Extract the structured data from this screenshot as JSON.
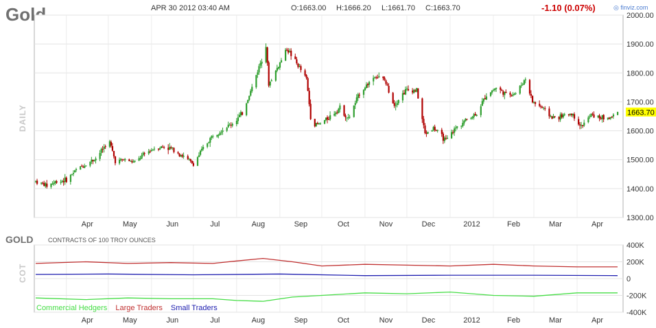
{
  "header": {
    "ticker": "Gold",
    "date": "APR 30 2012 03:40 AM",
    "open": "O:1663.00",
    "high": "H:1666.20",
    "low": "L:1661.70",
    "close": "C:1663.70",
    "change": "-1.10 (0.07%)",
    "brand": "finviz.com"
  },
  "colors": {
    "up": "#2e9e2e",
    "down": "#b00000",
    "commercial": "#44dd44",
    "large": "#c03030",
    "small": "#2020b0",
    "last_bg": "#ffff00"
  },
  "chart_data": [
    {
      "type": "candlestick",
      "side_label": "DAILY",
      "last_price": "1663.70",
      "ylim": [
        1300,
        2000
      ],
      "yticks": [
        "2000.00",
        "1900.00",
        "1800.00",
        "1700.00",
        "1600.00",
        "1500.00",
        "1400.00",
        "1300.00"
      ],
      "xticks": [
        "Apr",
        "May",
        "Jun",
        "Jul",
        "Aug",
        "Sep",
        "Oct",
        "Nov",
        "Dec",
        "2012",
        "Feb",
        "Mar",
        "Apr"
      ],
      "x_range": [
        "2011-03-10",
        "2012-04-30"
      ],
      "close_path": [
        [
          "2011-03-10",
          1425
        ],
        [
          "2011-03-18",
          1410
        ],
        [
          "2011-03-25",
          1425
        ],
        [
          "2011-04-01",
          1430
        ],
        [
          "2011-04-08",
          1465
        ],
        [
          "2011-04-15",
          1485
        ],
        [
          "2011-04-22",
          1505
        ],
        [
          "2011-04-29",
          1550
        ],
        [
          "2011-05-02",
          1560
        ],
        [
          "2011-05-06",
          1495
        ],
        [
          "2011-05-13",
          1500
        ],
        [
          "2011-05-20",
          1490
        ],
        [
          "2011-05-27",
          1520
        ],
        [
          "2011-06-03",
          1540
        ],
        [
          "2011-06-10",
          1545
        ],
        [
          "2011-06-17",
          1535
        ],
        [
          "2011-06-24",
          1510
        ],
        [
          "2011-07-01",
          1485
        ],
        [
          "2011-07-08",
          1540
        ],
        [
          "2011-07-15",
          1585
        ],
        [
          "2011-07-22",
          1605
        ],
        [
          "2011-07-29",
          1625
        ],
        [
          "2011-08-05",
          1660
        ],
        [
          "2011-08-12",
          1750
        ],
        [
          "2011-08-19",
          1850
        ],
        [
          "2011-08-22",
          1895
        ],
        [
          "2011-08-24",
          1760
        ],
        [
          "2011-08-31",
          1825
        ],
        [
          "2011-09-06",
          1885
        ],
        [
          "2011-09-12",
          1840
        ],
        [
          "2011-09-20",
          1780
        ],
        [
          "2011-09-23",
          1650
        ],
        [
          "2011-09-26",
          1620
        ],
        [
          "2011-09-30",
          1625
        ],
        [
          "2011-10-07",
          1650
        ],
        [
          "2011-10-14",
          1680
        ],
        [
          "2011-10-20",
          1640
        ],
        [
          "2011-10-28",
          1730
        ],
        [
          "2011-11-08",
          1790
        ],
        [
          "2011-11-15",
          1775
        ],
        [
          "2011-11-22",
          1690
        ],
        [
          "2011-11-30",
          1740
        ],
        [
          "2011-12-08",
          1740
        ],
        [
          "2011-12-14",
          1590
        ],
        [
          "2011-12-20",
          1610
        ],
        [
          "2011-12-29",
          1565
        ],
        [
          "2012-01-05",
          1610
        ],
        [
          "2012-01-13",
          1640
        ],
        [
          "2012-01-20",
          1660
        ],
        [
          "2012-01-27",
          1725
        ],
        [
          "2012-02-03",
          1750
        ],
        [
          "2012-02-10",
          1725
        ],
        [
          "2012-02-17",
          1730
        ],
        [
          "2012-02-24",
          1780
        ],
        [
          "2012-02-29",
          1700
        ],
        [
          "2012-03-07",
          1680
        ],
        [
          "2012-03-14",
          1645
        ],
        [
          "2012-03-21",
          1650
        ],
        [
          "2012-03-28",
          1660
        ],
        [
          "2012-04-04",
          1615
        ],
        [
          "2012-04-11",
          1655
        ],
        [
          "2012-04-18",
          1645
        ],
        [
          "2012-04-25",
          1645
        ],
        [
          "2012-04-30",
          1663.7
        ]
      ]
    },
    {
      "type": "line",
      "ticker": "GOLD",
      "subtitle": "CONTRACTS OF 100 TROY OUNCES",
      "side_label": "COT",
      "ylim": [
        -400000,
        400000
      ],
      "yticks": [
        "400K",
        "200K",
        "0",
        "-200K",
        "-400K"
      ],
      "ytick_values": [
        400000,
        200000,
        0,
        -200000,
        -400000
      ],
      "xticks": [
        "Apr",
        "May",
        "Jun",
        "Jul",
        "Aug",
        "Sep",
        "Oct",
        "Nov",
        "Dec",
        "2012",
        "Feb",
        "Mar",
        "Apr"
      ],
      "x_range": [
        "2011-03-10",
        "2012-04-30"
      ],
      "series": [
        {
          "name": "Commercial Hedgers",
          "x": [
            "2011-03-10",
            "2011-04-15",
            "2011-05-15",
            "2011-06-15",
            "2011-07-15",
            "2011-08-01",
            "2011-08-20",
            "2011-09-10",
            "2011-10-01",
            "2011-11-01",
            "2011-12-01",
            "2012-01-01",
            "2012-02-01",
            "2012-03-01",
            "2012-04-01",
            "2012-04-30"
          ],
          "values": [
            -230000,
            -250000,
            -230000,
            -240000,
            -240000,
            -260000,
            -270000,
            -220000,
            -200000,
            -170000,
            -180000,
            -160000,
            -200000,
            -210000,
            -170000,
            -170000
          ]
        },
        {
          "name": "Large Traders",
          "x": [
            "2011-03-10",
            "2011-04-15",
            "2011-05-15",
            "2011-06-15",
            "2011-07-15",
            "2011-08-01",
            "2011-08-20",
            "2011-09-10",
            "2011-10-01",
            "2011-11-01",
            "2011-12-01",
            "2012-01-01",
            "2012-02-01",
            "2012-03-01",
            "2012-04-01",
            "2012-04-30"
          ],
          "values": [
            180000,
            200000,
            180000,
            190000,
            180000,
            210000,
            240000,
            200000,
            150000,
            170000,
            160000,
            150000,
            170000,
            150000,
            140000,
            140000
          ]
        },
        {
          "name": "Small Traders",
          "x": [
            "2011-03-10",
            "2011-05-01",
            "2011-07-01",
            "2011-09-01",
            "2011-11-01",
            "2012-01-01",
            "2012-03-01",
            "2012-04-30"
          ],
          "values": [
            50000,
            55000,
            45000,
            55000,
            35000,
            40000,
            40000,
            35000
          ]
        }
      ]
    }
  ]
}
